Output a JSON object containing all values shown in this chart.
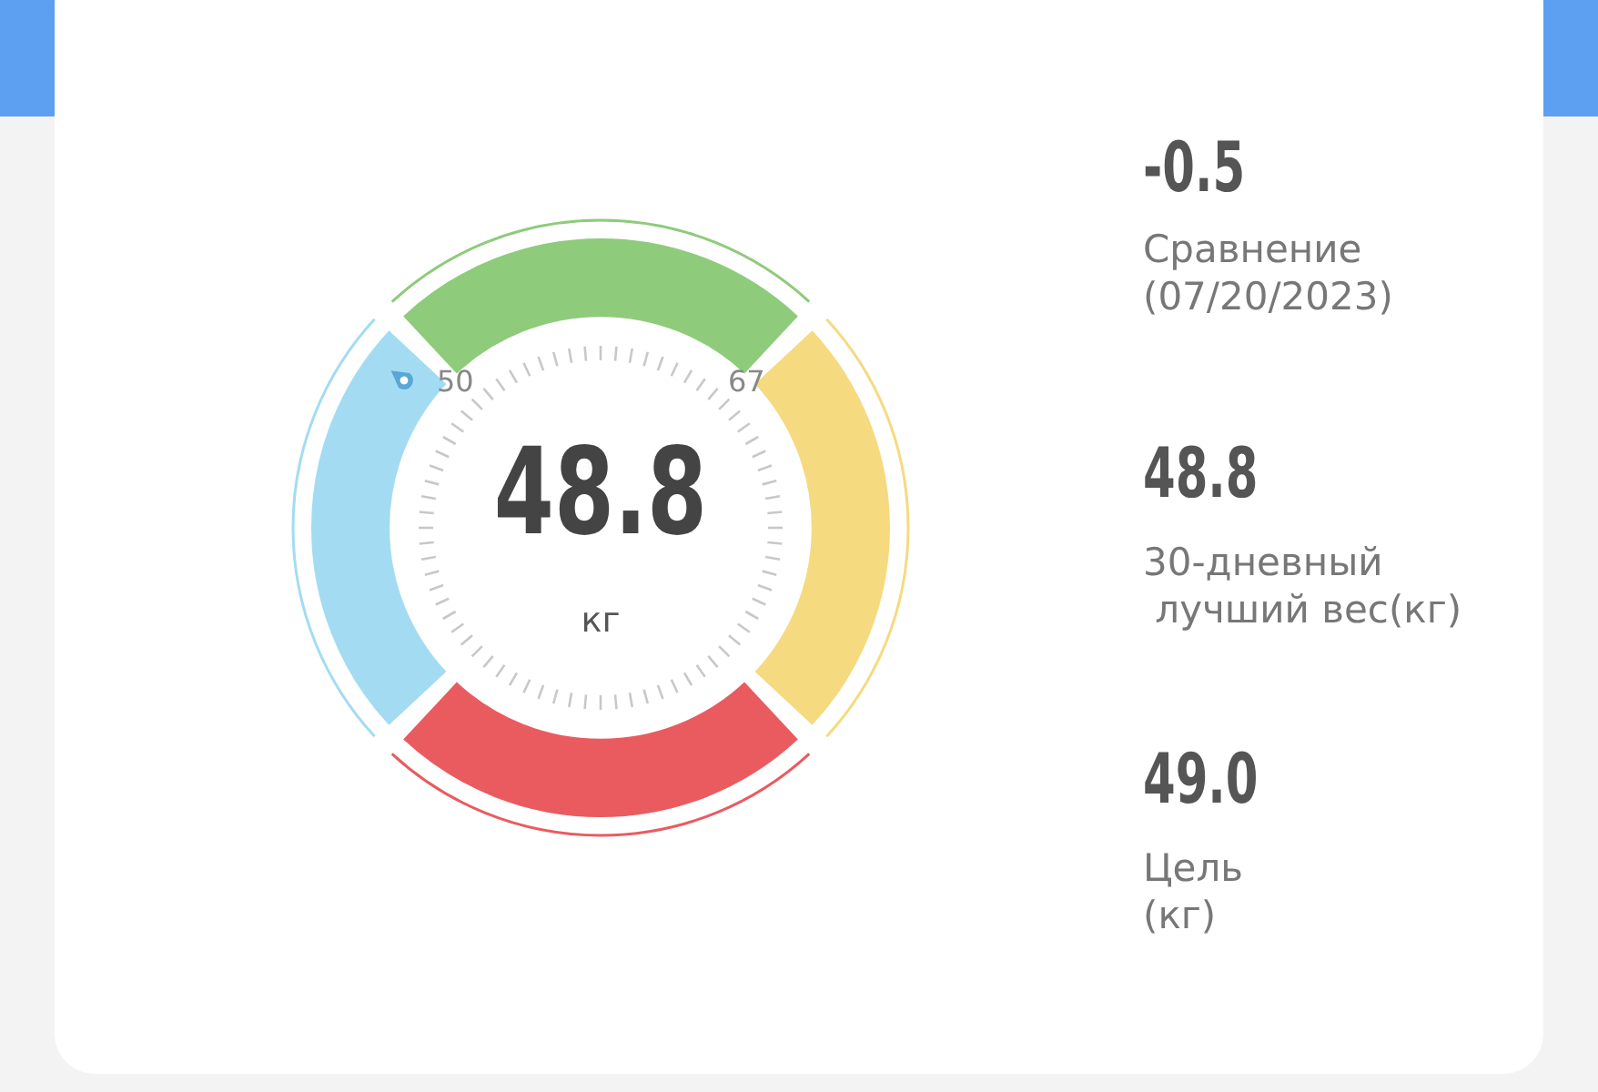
{
  "chart_data": {
    "type": "donut",
    "categories": [
      null,
      null,
      null,
      null
    ],
    "values": [
      25,
      25,
      25,
      25
    ],
    "colors": [
      "#8ecb7b",
      "#f6da80",
      "#e95b5f",
      "#a3dcf2"
    ],
    "legend": false,
    "annotations": [
      "50",
      "67",
      "48.8",
      "кг",
      "-0.5",
      "Сравнение\n(07/20/2023)",
      "48.8",
      "30-дневный\n лучший вес(кг)",
      "49.0",
      "Цель\n(кг)"
    ]
  }
}
